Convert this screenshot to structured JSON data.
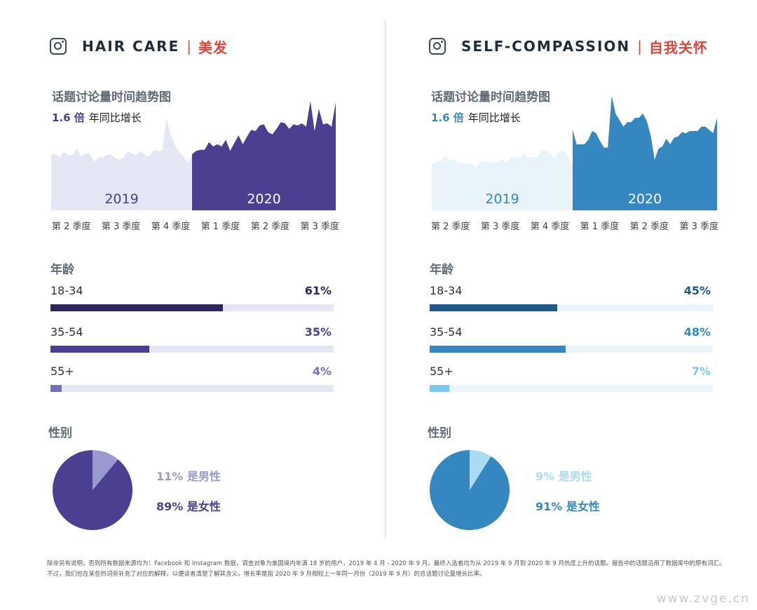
{
  "panels": [
    {
      "title_en": "HAIR CARE",
      "separator": "|",
      "title_zh": "美发",
      "trend_title": "话题讨论量时间趋势图",
      "growth_value": "1.6 倍",
      "growth_label": "年同比增长",
      "age_title": "年龄",
      "gender_title": "性别",
      "ages": [
        {
          "label": "18-34",
          "pct": "61%",
          "value": 61
        },
        {
          "label": "35-54",
          "pct": "35%",
          "value": 35
        },
        {
          "label": "55+",
          "pct": "4%",
          "value": 4
        }
      ],
      "gender": {
        "male": 11,
        "female": 89,
        "male_label": "11% 是男性",
        "female_label": "89% 是女性"
      },
      "colors": {
        "accent": "#4a3f91",
        "light_area": "#e3e6f3",
        "year_2019_text": "#4a3f91",
        "age_bars": [
          "#2c255f",
          "#4a3f91",
          "#7470bb"
        ],
        "track": "#e4e7f3",
        "male": "#9b9ad0",
        "female": "#4a3f91"
      }
    },
    {
      "title_en": "SELF-COMPASSION",
      "separator": "|",
      "title_zh": "自我关怀",
      "trend_title": "话题讨论量时间趋势图",
      "growth_value": "1.6 倍",
      "growth_label": "年同比增长",
      "age_title": "年龄",
      "gender_title": "性别",
      "ages": [
        {
          "label": "18-34",
          "pct": "45%",
          "value": 45
        },
        {
          "label": "35-54",
          "pct": "48%",
          "value": 48
        },
        {
          "label": "55+",
          "pct": "7%",
          "value": 7
        }
      ],
      "gender": {
        "male": 9,
        "female": 91,
        "male_label": "9% 是男性",
        "female_label": "91% 是女性"
      },
      "colors": {
        "accent": "#3587c0",
        "light_area": "#e8f3fa",
        "year_2019_text": "#3587c0",
        "age_bars": [
          "#1f5a8a",
          "#3587c0",
          "#7ac8ec"
        ],
        "track": "#eaf5fb",
        "male": "#a9dcf3",
        "female": "#3587c0"
      }
    }
  ],
  "chart_data": [
    {
      "type": "area",
      "title": "话题讨论量时间趋势图",
      "x_ticks": [
        "第 2 季度",
        "第 3 季度",
        "第 4 季度",
        "第 1 季度",
        "第 2 季度",
        "第 3 季度"
      ],
      "series": [
        {
          "name": "2019",
          "values": [
            50,
            51,
            48,
            53,
            50,
            50,
            56,
            49,
            51,
            52,
            44,
            48,
            48,
            50,
            51,
            47,
            46,
            48,
            54,
            51,
            50,
            54,
            50,
            49,
            54,
            54,
            54,
            83,
            68,
            59,
            53,
            49,
            43,
            50
          ]
        },
        {
          "name": "2020",
          "values": [
            51,
            54,
            55,
            55,
            62,
            58,
            60,
            58,
            64,
            54,
            61,
            68,
            60,
            67,
            73,
            72,
            77,
            78,
            71,
            69,
            74,
            80,
            79,
            74,
            78,
            77,
            79,
            76,
            99,
            72,
            92,
            78,
            79,
            76,
            98
          ]
        }
      ],
      "ylim": [
        0,
        105
      ],
      "grid": false,
      "legend": "none"
    },
    {
      "type": "area",
      "title": "话题讨论量时间趋势图",
      "x_ticks": [
        "第 2 季度",
        "第 3 季度",
        "第 4 季度",
        "第 1 季度",
        "第 2 季度",
        "第 3 季度"
      ],
      "series": [
        {
          "name": "2019",
          "values": [
            42,
            44,
            44,
            50,
            46,
            46,
            43,
            43,
            42,
            43,
            38,
            44,
            45,
            44,
            43,
            45,
            46,
            44,
            48,
            48,
            47,
            52,
            48,
            48,
            48,
            55,
            54,
            52,
            47,
            54,
            54,
            48,
            42
          ]
        },
        {
          "name": "2020",
          "values": [
            73,
            60,
            60,
            60,
            64,
            72,
            70,
            63,
            57,
            57,
            104,
            88,
            82,
            76,
            80,
            80,
            84,
            84,
            88,
            81,
            68,
            46,
            56,
            58,
            65,
            60,
            66,
            67,
            71,
            70,
            72,
            72,
            72,
            76,
            76,
            73,
            70,
            84
          ]
        }
      ],
      "ylim": [
        0,
        105
      ],
      "grid": false,
      "legend": "none"
    }
  ],
  "footnote": [
    "除非另有说明，否则所有数据来源均为：Facebook 和 Instagram 数据，调查对象为美国境内年满 18 岁的用户，2019 年 4 月 - 2020 年 9 月。最终入选者均为从 2019 年 9 月到 2020 年 9 月热度上升的话题。报告中的话题沿用了数据库中的原有词汇。",
    "不过，我们也在某些热词旁补充了对应的解释，以便读者清楚了解其含义。增长率是指 2020 年 9 月相较上一年同一月份（2019 年 9 月）的总话题讨论量增长比率。"
  ],
  "watermark": "www.zvge.cn"
}
